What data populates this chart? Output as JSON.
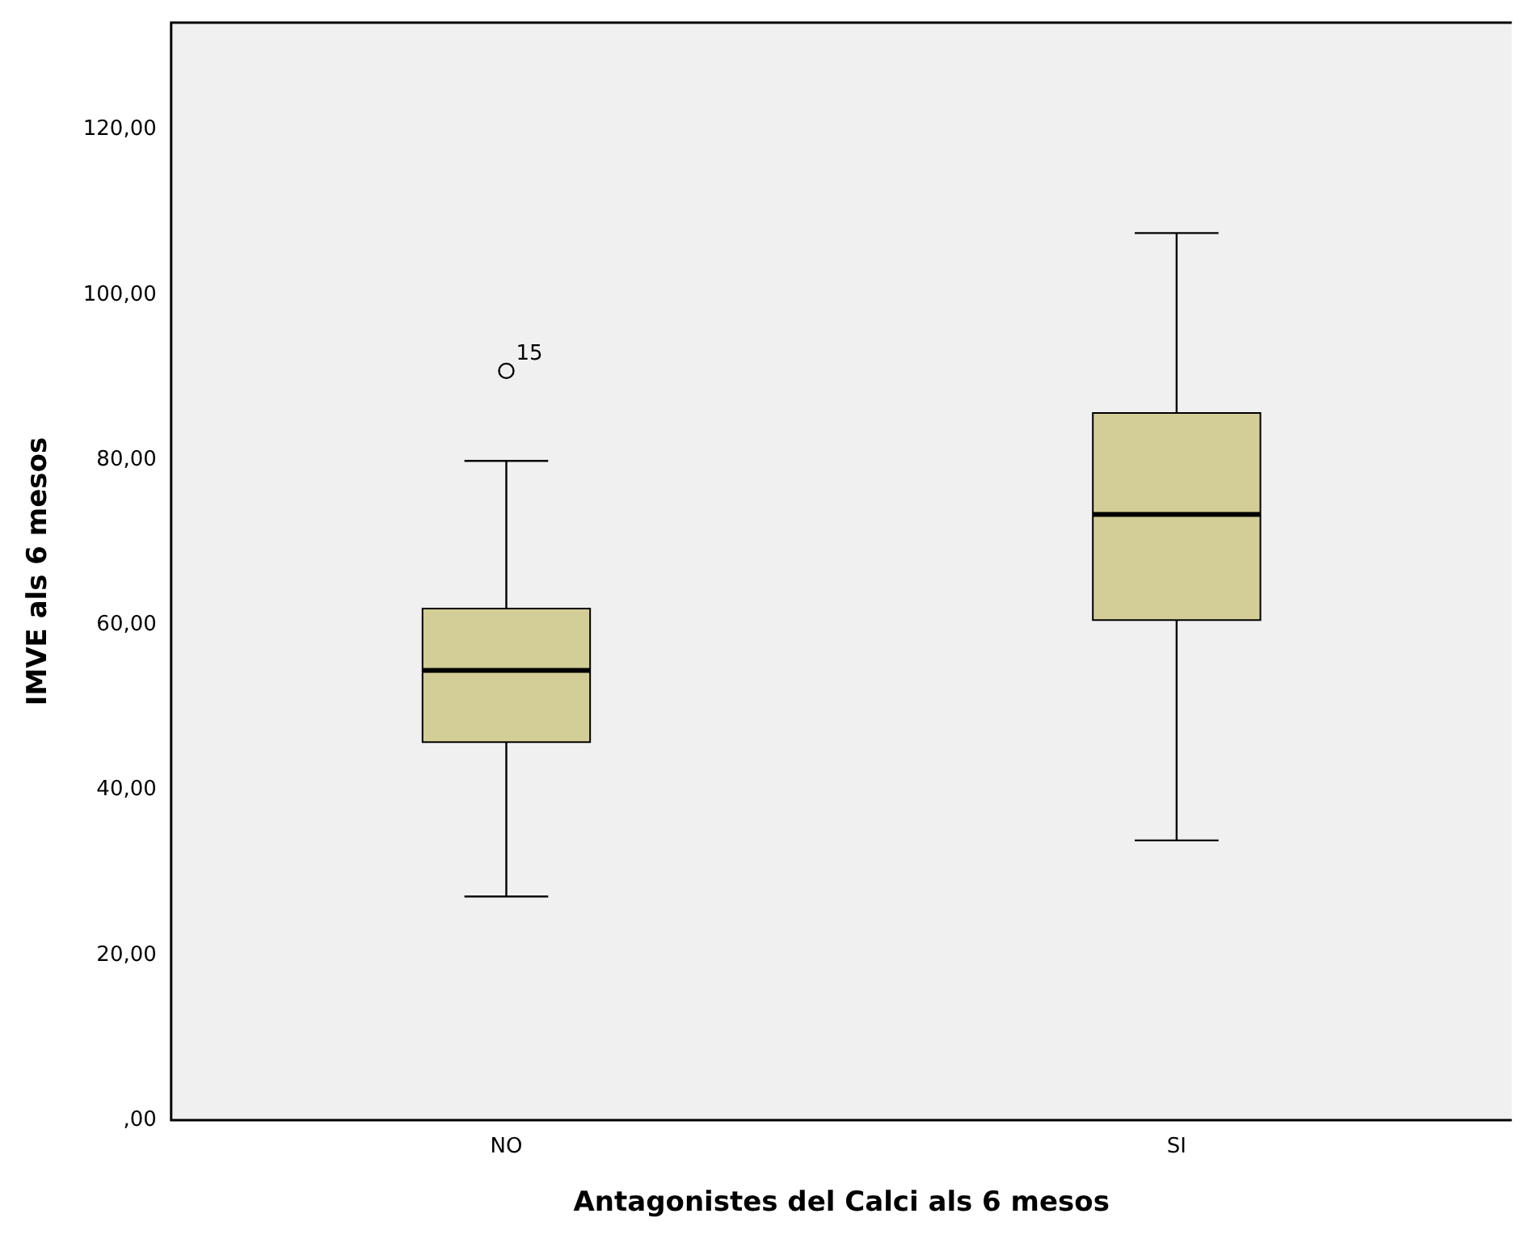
{
  "chart_data": {
    "type": "box",
    "xlabel": "Antagonistes del Calci als 6 mesos",
    "ylabel": "IMVE als 6 mesos",
    "categories": [
      "NO",
      "SI"
    ],
    "boxes": [
      {
        "low": 27.1,
        "q1": 45.8,
        "median": 54.5,
        "q3": 62.0,
        "high": 79.9,
        "outliers": [
          90.8
        ]
      },
      {
        "low": 33.9,
        "q1": 60.6,
        "median": 73.4,
        "q3": 85.7,
        "high": 107.5
      }
    ],
    "color": "#d3ce97",
    "ylim": [
      0,
      133
    ],
    "yticks": [
      {
        "value": 0,
        "label": ",00"
      },
      {
        "value": 20,
        "label": "20,00"
      },
      {
        "value": 40,
        "label": "40,00"
      },
      {
        "value": 60,
        "label": "60,00"
      },
      {
        "value": 80,
        "label": "80,00"
      },
      {
        "value": 100,
        "label": "100,00"
      },
      {
        "value": 120,
        "label": "120,00"
      }
    ],
    "grid": false,
    "annotations": [
      "15"
    ]
  }
}
